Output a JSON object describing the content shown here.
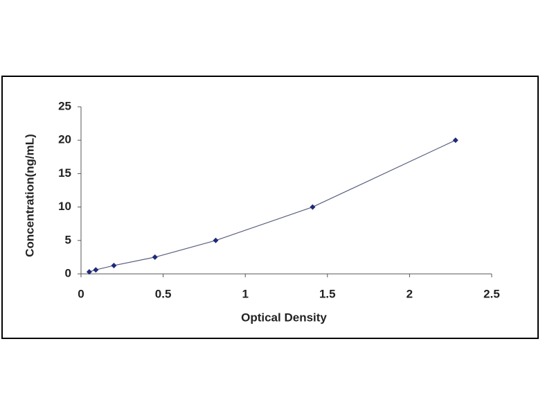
{
  "chart_data": {
    "type": "scatter",
    "x_label": "Optical Density",
    "y_label": "Concentration(ng/mL)",
    "x": [
      0.05,
      0.09,
      0.2,
      0.45,
      0.82,
      1.41,
      2.28
    ],
    "series": [
      {
        "color": "#1f2a7a",
        "values": [
          0.3,
          0.6,
          1.25,
          2.5,
          5,
          10,
          20
        ]
      }
    ],
    "xlim": [
      0,
      2.5
    ],
    "xticks": [
      0,
      0.5,
      1,
      1.5,
      2,
      2.5
    ],
    "ylim": [
      0,
      25
    ],
    "yticks": [
      0,
      5,
      10,
      15,
      20,
      25
    ],
    "grid": false
  }
}
